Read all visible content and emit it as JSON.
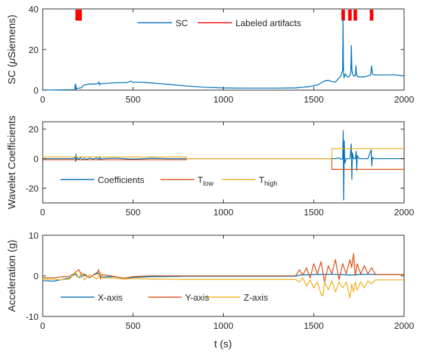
{
  "chart_data": [
    {
      "type": "line",
      "ylabel_prefix": "SC (",
      "ylabel_mu": "μ",
      "ylabel_suffix": "Siemens)",
      "xlim": [
        0,
        2000
      ],
      "ylim": [
        0,
        40
      ],
      "xticks": [
        0,
        500,
        1000,
        1500,
        2000
      ],
      "yticks": [
        0,
        20,
        40
      ],
      "legend": {
        "placement": "top-center",
        "entries": [
          "SC",
          "Labeled artifacts"
        ]
      },
      "series": [
        {
          "name": "SC",
          "color": "#0072BD",
          "x": [
            0,
            178,
            180,
            182,
            184,
            186,
            190,
            200,
            215,
            225,
            240,
            260,
            290,
            305,
            312,
            315,
            318,
            330,
            360,
            400,
            440,
            470,
            490,
            500,
            510,
            550,
            600,
            650,
            700,
            800,
            900,
            1000,
            1100,
            1200,
            1300,
            1380,
            1400,
            1420,
            1440,
            1460,
            1480,
            1500,
            1520,
            1540,
            1560,
            1580,
            1600,
            1620,
            1640,
            1650,
            1660,
            1662,
            1664,
            1666,
            1668,
            1670,
            1675,
            1680,
            1690,
            1700,
            1705,
            1708,
            1711,
            1715,
            1720,
            1725,
            1730,
            1734,
            1736,
            1740,
            1745,
            1760,
            1780,
            1800,
            1815,
            1820,
            1825,
            1830,
            1850,
            1900,
            1950,
            2000
          ],
          "y": [
            0,
            0.2,
            3,
            0.5,
            2.5,
            0.5,
            0.8,
            1,
            1.2,
            2.3,
            2.7,
            3,
            3,
            3.2,
            4,
            2.5,
            3.2,
            3.2,
            3.4,
            3.6,
            3.7,
            3.8,
            4.4,
            3.8,
            3.9,
            3.9,
            3.5,
            3.2,
            2.8,
            2,
            1.4,
            1.1,
            1.0,
            1.0,
            1.0,
            1.1,
            1.1,
            1.3,
            1.4,
            1.6,
            1.8,
            2.2,
            2.5,
            3.5,
            4.5,
            4.8,
            4.2,
            4,
            6,
            7,
            10,
            35,
            14,
            8,
            6,
            7,
            8,
            7,
            6.5,
            7,
            9,
            22,
            10,
            8,
            7,
            7,
            7,
            12,
            8,
            7,
            6.5,
            6.5,
            6.5,
            7,
            7.5,
            12,
            8,
            7.5,
            7.5,
            7.5,
            7.5,
            7.0
          ]
        }
      ],
      "artifact_regions": [
        [
          186,
          212
        ],
        [
          1658,
          1668
        ],
        [
          1695,
          1705
        ],
        [
          1725,
          1735
        ],
        [
          1815,
          1825
        ]
      ]
    },
    {
      "type": "line",
      "ylabel": "Wavelet Coefficients",
      "xlim": [
        0,
        2000
      ],
      "ylim": [
        -30,
        25
      ],
      "xticks": [
        0,
        500,
        1000,
        1500,
        2000
      ],
      "yticks": [
        -20,
        0,
        20
      ],
      "legend": {
        "placement": "bottom-left",
        "entries": [
          {
            "label": "Coefficients",
            "sub": ""
          },
          {
            "label": "T",
            "sub": "low"
          },
          {
            "label": "T",
            "sub": "high"
          }
        ]
      },
      "series": [
        {
          "name": "Coefficients",
          "color": "#0072BD",
          "x": [
            0,
            170,
            180,
            182,
            184,
            186,
            190,
            200,
            210,
            220,
            230,
            240,
            260,
            280,
            300,
            310,
            315,
            320,
            330,
            400,
            500,
            600,
            700,
            800,
            1000,
            1200,
            1400,
            1500,
            1600,
            1620,
            1640,
            1650,
            1660,
            1663,
            1666,
            1669,
            1672,
            1680,
            1700,
            1708,
            1711,
            1714,
            1720,
            1730,
            1735,
            1738,
            1741,
            1750,
            1800,
            1818,
            1821,
            1824,
            1830,
            1900,
            2000
          ],
          "y": [
            0,
            0,
            1,
            -2,
            3,
            -1,
            0.5,
            -0.5,
            1,
            -1,
            0.3,
            -0.5,
            0.3,
            -0.2,
            0.5,
            -1,
            1.5,
            -0.5,
            0,
            0.3,
            -0.3,
            0.2,
            0,
            0,
            0,
            0,
            0,
            0,
            0,
            0,
            0.5,
            -0.5,
            0,
            19,
            -28,
            12,
            -3,
            0,
            0,
            10,
            -14,
            4,
            0,
            0,
            5,
            -8,
            2,
            0,
            0,
            6,
            -5,
            1,
            0,
            0,
            0
          ]
        },
        {
          "name": "T",
          "color": "#D95319",
          "x": [
            0,
            795,
            795,
            1600,
            1600,
            2000
          ],
          "y": [
            -0.8,
            -0.8,
            0,
            0,
            -7.3,
            -7.3
          ]
        },
        {
          "name": "T",
          "color": "#EDB120",
          "x": [
            0,
            795,
            795,
            1600,
            1600,
            2000
          ],
          "y": [
            1.2,
            1.2,
            0,
            0,
            6.8,
            6.8
          ]
        }
      ]
    },
    {
      "type": "line",
      "ylabel": "Acceleration (g)",
      "xlabel": "t (s)",
      "xlim": [
        0,
        2000
      ],
      "ylim": [
        -10,
        10
      ],
      "xticks": [
        0,
        500,
        1000,
        1500,
        2000
      ],
      "yticks": [
        -10,
        0,
        10
      ],
      "legend": {
        "placement": "bottom-left",
        "entries": [
          "X-axis",
          "Y-axis",
          "Z-axis"
        ]
      },
      "series": [
        {
          "name": "X-axis",
          "color": "#0072BD",
          "x": [
            0,
            60,
            100,
            150,
            180,
            200,
            230,
            260,
            300,
            330,
            400,
            450,
            500,
            600,
            800,
            1000,
            1200,
            1400,
            1420,
            1500,
            1600,
            1700,
            1800,
            1850,
            1900,
            2000
          ],
          "y": [
            -1.2,
            -1.3,
            -1.0,
            -0.5,
            0.5,
            -0.5,
            0.2,
            -0.4,
            0.8,
            -0.3,
            -0.2,
            -0.6,
            -0.4,
            -0.2,
            -0.1,
            -0.1,
            -0.1,
            -0.1,
            0.2,
            0.3,
            0.4,
            0.2,
            0.4,
            0.3,
            0.3,
            0.3
          ]
        },
        {
          "name": "Y-axis",
          "color": "#D95319",
          "x": [
            0,
            60,
            100,
            150,
            180,
            200,
            215,
            230,
            260,
            280,
            300,
            310,
            320,
            330,
            400,
            450,
            500,
            600,
            800,
            1000,
            1200,
            1400,
            1420,
            1440,
            1460,
            1480,
            1500,
            1520,
            1540,
            1560,
            1580,
            1600,
            1620,
            1640,
            1660,
            1680,
            1700,
            1710,
            1720,
            1730,
            1740,
            1760,
            1780,
            1800,
            1820,
            1840,
            1850,
            1900,
            2000
          ],
          "y": [
            -0.5,
            -0.5,
            -0.3,
            -0.1,
            0.8,
            1.5,
            0.2,
            0.5,
            -0.5,
            0.2,
            0.5,
            1.5,
            -0.8,
            0.3,
            -0.2,
            -0.6,
            -0.2,
            0.0,
            0.0,
            0.0,
            0.0,
            0.0,
            1.5,
            0.2,
            2.0,
            -0.5,
            3.0,
            0.5,
            3.5,
            -1.5,
            2.5,
            0.5,
            4.0,
            -1.0,
            3.0,
            0.5,
            4.0,
            2.0,
            5.5,
            0.0,
            3.0,
            0.5,
            2.5,
            0.5,
            2.0,
            0.5,
            0.3,
            0.3,
            0.3
          ]
        },
        {
          "name": "Z-axis",
          "color": "#EDB120",
          "x": [
            0,
            60,
            100,
            150,
            180,
            200,
            215,
            230,
            260,
            300,
            320,
            330,
            400,
            450,
            500,
            600,
            800,
            1000,
            1200,
            1400,
            1420,
            1440,
            1460,
            1480,
            1500,
            1520,
            1540,
            1550,
            1560,
            1580,
            1600,
            1620,
            1640,
            1660,
            1680,
            1700,
            1710,
            1720,
            1730,
            1740,
            1760,
            1780,
            1800,
            1820,
            1840,
            1850,
            1900,
            2000
          ],
          "y": [
            -0.8,
            -0.8,
            -1.0,
            -0.8,
            1.0,
            -0.5,
            0.8,
            -1.0,
            0.3,
            -0.8,
            0.8,
            -0.5,
            -0.6,
            -0.8,
            -0.7,
            -0.8,
            -0.9,
            -0.9,
            -0.9,
            -0.9,
            -1.5,
            -0.5,
            -2.5,
            -1.0,
            -3.0,
            -1.5,
            -4.5,
            -5.0,
            -1.5,
            -3.5,
            -1.2,
            -4.0,
            -1.5,
            -3.0,
            -1.5,
            -5.5,
            -2.0,
            -4.0,
            -1.5,
            -3.5,
            -1.5,
            -3.0,
            -1.2,
            -2.0,
            -1.0,
            -1.0,
            -1.0,
            -1.0
          ]
        }
      ]
    }
  ],
  "artifact_color": "#FF0000"
}
